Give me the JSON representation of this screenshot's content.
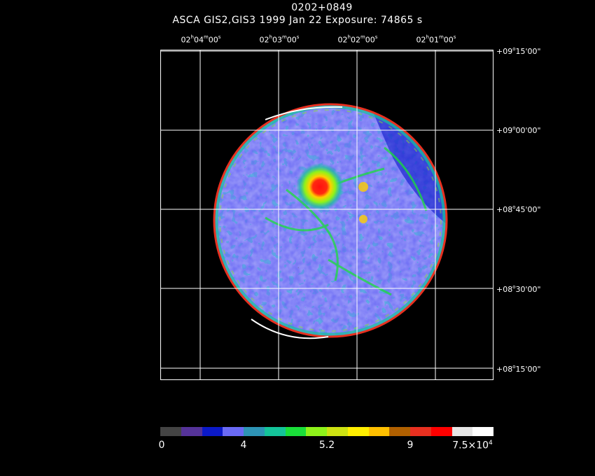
{
  "header": {
    "source": "0202+0849",
    "line2": "ASCA GIS2,GIS3   1999 Jan 22    Exposure: 74865 s"
  },
  "ra_ticks": [
    {
      "h": "02",
      "m": "04",
      "s": "00"
    },
    {
      "h": "02",
      "m": "03",
      "s": "00"
    },
    {
      "h": "02",
      "m": "02",
      "s": "00"
    },
    {
      "h": "02",
      "m": "01",
      "s": "00"
    }
  ],
  "dec_ticks": [
    {
      "sign": "+",
      "d": "09",
      "m": "15",
      "s": "00"
    },
    {
      "sign": "+",
      "d": "09",
      "m": "00",
      "s": "00"
    },
    {
      "sign": "+",
      "d": "08",
      "m": "45",
      "s": "00"
    },
    {
      "sign": "+",
      "d": "08",
      "m": "30",
      "s": "00"
    },
    {
      "sign": "+",
      "d": "08",
      "m": "15",
      "s": "00"
    }
  ],
  "colorbar": {
    "colors": [
      "#444444",
      "#553399",
      "#0b19c8",
      "#6a6af5",
      "#2e94b6",
      "#14c49a",
      "#1adf3a",
      "#8ef21a",
      "#cde212",
      "#ffee00",
      "#ffc000",
      "#b06000",
      "#e83020",
      "#ff0000",
      "#e6e6e6",
      "#ffffff"
    ],
    "labels": {
      "l0": "0",
      "l1": "4",
      "l2": "5.2",
      "l3": "9",
      "l4_mant": "7.5×10",
      "l4_exp": "4"
    }
  },
  "image": {
    "brightest_source_color": "#ff2010"
  }
}
